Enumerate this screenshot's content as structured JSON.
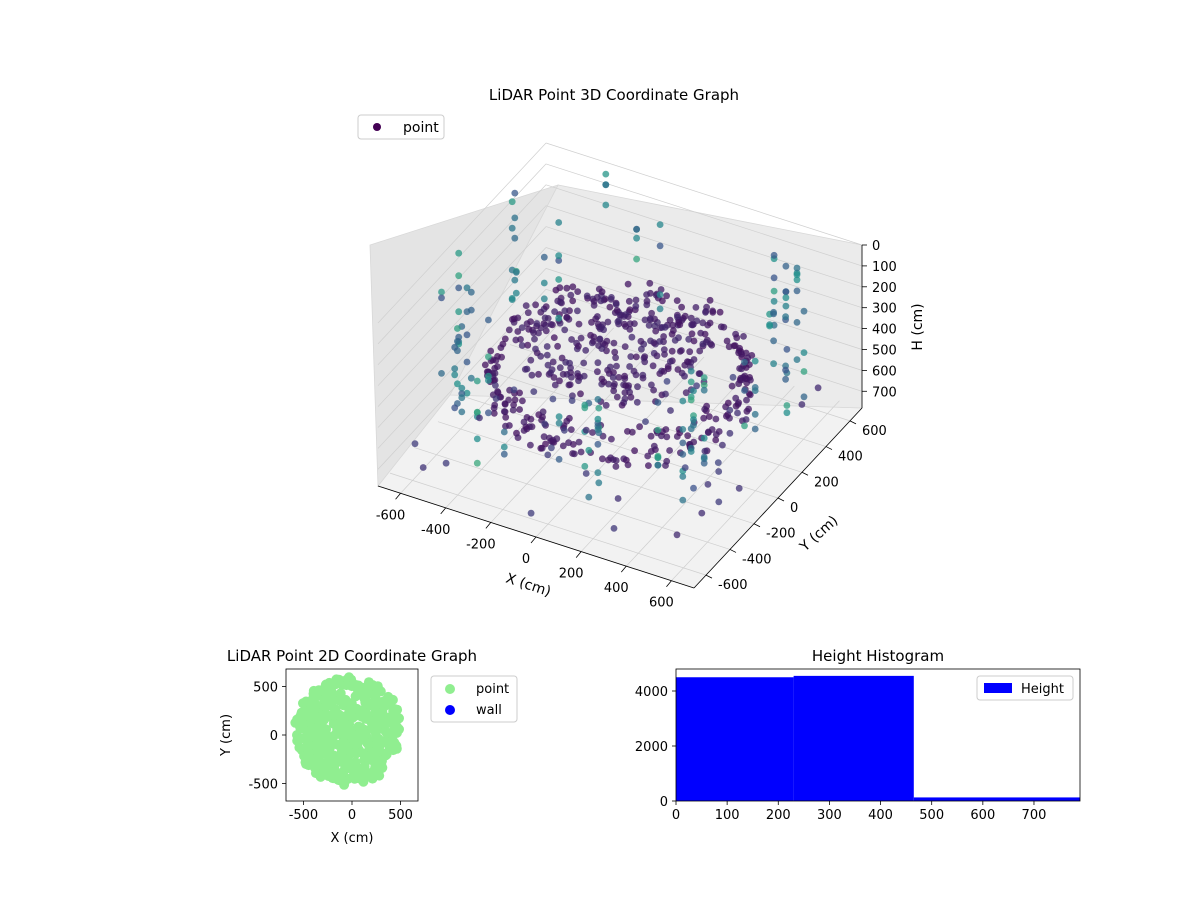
{
  "chart_data": [
    {
      "type": "scatter3d",
      "title": "LiDAR Point 3D Coordinate Graph",
      "xlabel": "X (cm)",
      "ylabel": "Y (cm)",
      "zlabel": "H (cm)",
      "xlim": [
        -700,
        700
      ],
      "ylim": [
        -700,
        700
      ],
      "zlim": [
        0,
        780
      ],
      "z_inverted": true,
      "xticks": [
        "-600",
        "-400",
        "-200",
        "0",
        "200",
        "400",
        "600"
      ],
      "yticks": [
        "-600",
        "-400",
        "-200",
        "0",
        "200",
        "400",
        "600"
      ],
      "zticks": [
        "0",
        "100",
        "200",
        "300",
        "400",
        "500",
        "600",
        "700"
      ],
      "legend": {
        "entries": [
          "point"
        ],
        "placement": "top-left"
      },
      "colormap": "viridis",
      "grid": true
    },
    {
      "type": "scatter",
      "title": "LiDAR Point 2D Coordinate Graph",
      "xlabel": "X (cm)",
      "ylabel": "Y (cm)",
      "xlim": [
        -680,
        680
      ],
      "ylim": [
        -680,
        680
      ],
      "xticks": [
        -500,
        0,
        500
      ],
      "yticks": [
        -500,
        0,
        500
      ],
      "series": [
        {
          "name": "point",
          "color": "#90ee90"
        },
        {
          "name": "wall",
          "color": "#0000ff"
        }
      ],
      "legend": {
        "placement": "outside-right"
      }
    },
    {
      "type": "bar",
      "title": "Height Histogram",
      "xlim": [
        0,
        790
      ],
      "ylim": [
        0,
        4800
      ],
      "xticks": [
        0,
        100,
        200,
        300,
        400,
        500,
        600,
        700
      ],
      "yticks": [
        0,
        2000,
        4000
      ],
      "bins": [
        {
          "from": 0,
          "to": 230,
          "count": 4500
        },
        {
          "from": 230,
          "to": 465,
          "count": 4550
        },
        {
          "from": 465,
          "to": 790,
          "count": 130
        }
      ],
      "series": [
        {
          "name": "Height",
          "color": "#0000ff"
        }
      ],
      "legend": {
        "placement": "top-right"
      }
    }
  ]
}
